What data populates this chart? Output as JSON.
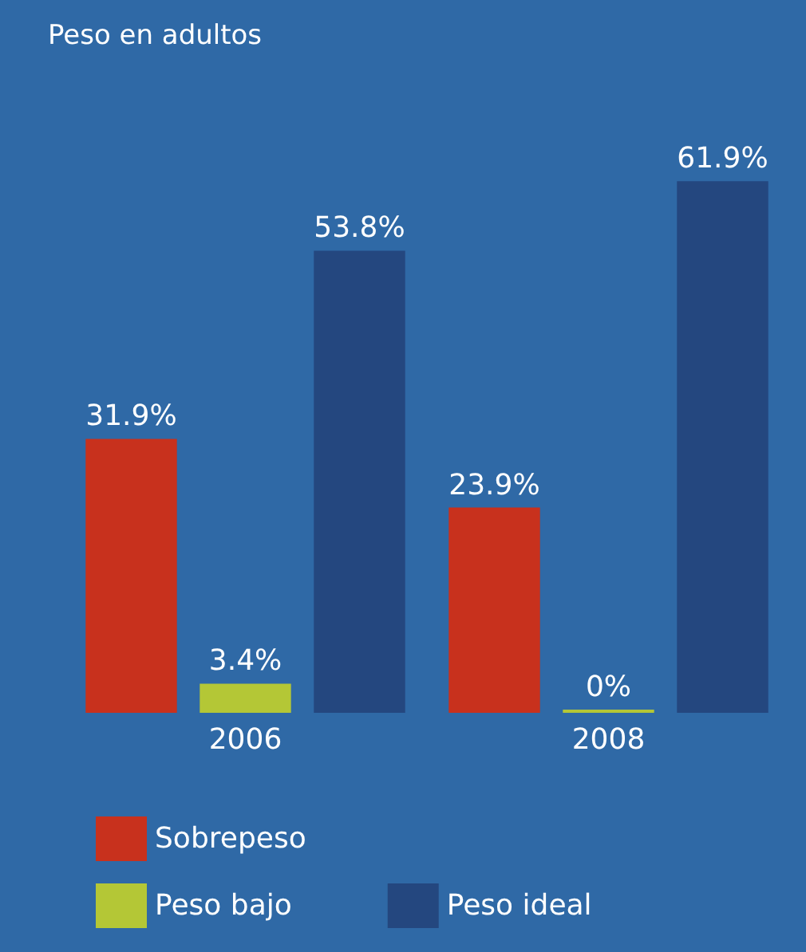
{
  "chart_data": {
    "type": "bar",
    "title": "Peso en adultos",
    "categories": [
      "2006",
      "2008"
    ],
    "series": [
      {
        "name": "Sobrepeso",
        "color": "#c8311d",
        "values": [
          31.9,
          23.9
        ],
        "value_labels": [
          "31.9%",
          "23.9%"
        ]
      },
      {
        "name": "Peso bajo",
        "color": "#b4c736",
        "values": [
          3.4,
          0
        ],
        "value_labels": [
          "3.4%",
          "0%"
        ]
      },
      {
        "name": "Peso ideal",
        "color": "#24477f",
        "values": [
          53.8,
          61.9
        ],
        "value_labels": [
          "53.8%",
          "61.9%"
        ]
      }
    ],
    "legend": "bottom left"
  }
}
